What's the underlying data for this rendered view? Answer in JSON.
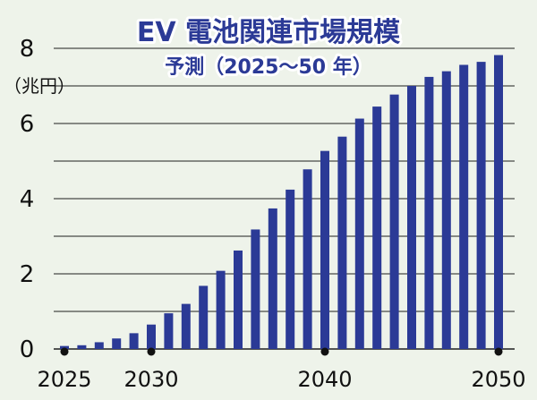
{
  "chart_data": {
    "type": "bar",
    "title": "EV 電池関連市場規模",
    "subtitle": "予測（2025〜50 年）",
    "ylabel": "（兆円）",
    "xlabel": "",
    "ylim": [
      0,
      8
    ],
    "yticks": [
      0,
      2,
      4,
      6,
      8
    ],
    "xtick_labels": [
      "2025",
      "2030",
      "2040",
      "2050"
    ],
    "xtick_years": [
      2025,
      2030,
      2040,
      2050
    ],
    "grid": true,
    "bar_color": "#2b3a96",
    "categories": [
      2025,
      2026,
      2027,
      2028,
      2029,
      2030,
      2031,
      2032,
      2033,
      2034,
      2035,
      2036,
      2037,
      2038,
      2039,
      2040,
      2041,
      2042,
      2043,
      2044,
      2045,
      2046,
      2047,
      2048,
      2049,
      2050
    ],
    "values": [
      0.08,
      0.1,
      0.18,
      0.28,
      0.42,
      0.65,
      0.95,
      1.2,
      1.68,
      2.08,
      2.62,
      3.18,
      3.74,
      4.24,
      4.78,
      5.27,
      5.65,
      6.13,
      6.45,
      6.77,
      7.0,
      7.24,
      7.39,
      7.56,
      7.64,
      7.82
    ]
  }
}
